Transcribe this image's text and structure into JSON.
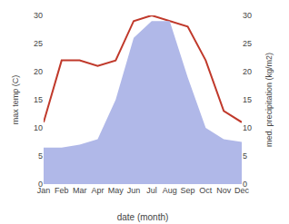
{
  "chart_data": {
    "type": "line",
    "categories": [
      "Jan",
      "Feb",
      "Mar",
      "Apr",
      "May",
      "Jun",
      "Jul",
      "Aug",
      "Sep",
      "Oct",
      "Nov",
      "Dec"
    ],
    "xlabel": "date (month)",
    "ylabel": "max temp (C)",
    "y2label": "med. precipitation (kg/m2)",
    "series": [
      {
        "type": "area",
        "axis": "y2",
        "color": "#b0b8e8",
        "values": [
          6.5,
          6.5,
          7,
          8,
          15,
          26,
          29,
          29,
          19,
          10,
          8,
          7.5
        ]
      },
      {
        "type": "line",
        "color": "#c0392b",
        "values": [
          11,
          22,
          22,
          21,
          22,
          29,
          30,
          29,
          28,
          22,
          13,
          11
        ]
      }
    ],
    "ylim": [
      0,
      30
    ],
    "yticks": [
      0,
      5,
      10,
      15,
      20,
      25,
      30
    ],
    "y2lim": [
      0,
      30
    ],
    "y2ticks": [
      0,
      5,
      10,
      15,
      20,
      25,
      30
    ],
    "grid": false
  }
}
